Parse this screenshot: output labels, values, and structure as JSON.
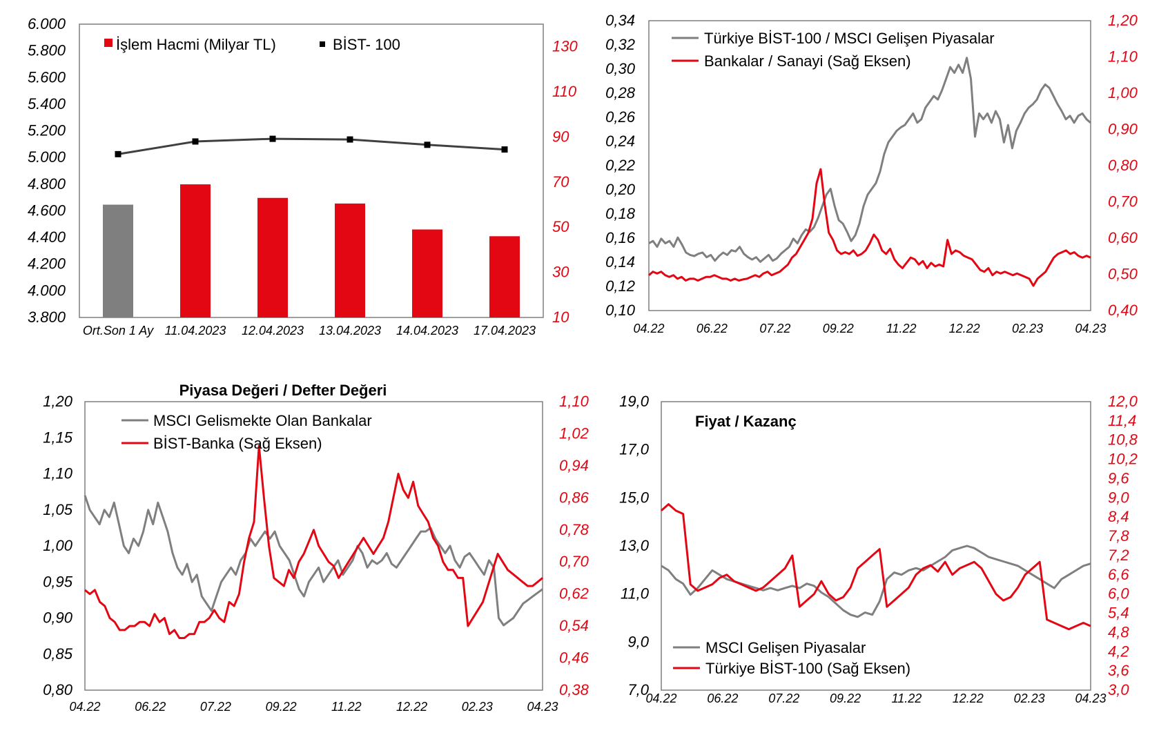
{
  "colors": {
    "red": "#e30613",
    "gray": "#7f7f7f",
    "black": "#000000",
    "dark": "#404040"
  },
  "chart_data": [
    {
      "id": "c1",
      "type": "bar",
      "title": "",
      "categories": [
        "Ort.Son 1 Ay",
        "11.04.2023",
        "12.04.2023",
        "13.04.2023",
        "14.04.2023",
        "17.04.2023"
      ],
      "series": [
        {
          "name": "İşlem Hacmi (Milyar TL)",
          "axis": "right",
          "values": [
            60,
            69,
            63,
            60.5,
            49,
            46
          ],
          "first_bar_color": "#7f7f7f"
        },
        {
          "name": "BİST- 100",
          "axis": "left",
          "type": "line",
          "values": [
            5025,
            5120,
            5140,
            5135,
            5095,
            5060
          ]
        }
      ],
      "ylim": [
        3800,
        6000
      ],
      "y2lim": [
        10,
        140
      ],
      "yticks": [
        "6.000",
        "5.800",
        "5.600",
        "5.400",
        "5.200",
        "5.000",
        "4.800",
        "4.600",
        "4.400",
        "4.200",
        "4.000",
        "3.800"
      ],
      "y2ticks": [
        "130",
        "110",
        "90",
        "70",
        "50",
        "30",
        "10"
      ],
      "legend": "top-left"
    },
    {
      "id": "c2",
      "type": "line",
      "title": "",
      "x_labels": [
        "04.22",
        "06.22",
        "07.22",
        "09.22",
        "11.22",
        "12.22",
        "02.23",
        "04.23"
      ],
      "series": [
        {
          "name": "Türkiye BİST-100 / MSCI Gelişen Piyasalar",
          "axis": "left",
          "values": [
            0.158,
            0.16,
            0.155,
            0.162,
            0.158,
            0.16,
            0.155,
            0.163,
            0.157,
            0.15,
            0.148,
            0.147,
            0.149,
            0.15,
            0.146,
            0.148,
            0.143,
            0.147,
            0.15,
            0.148,
            0.152,
            0.151,
            0.155,
            0.149,
            0.146,
            0.144,
            0.146,
            0.142,
            0.145,
            0.148,
            0.143,
            0.145,
            0.149,
            0.152,
            0.155,
            0.162,
            0.158,
            0.165,
            0.17,
            0.168,
            0.172,
            0.18,
            0.19,
            0.2,
            0.205,
            0.19,
            0.178,
            0.175,
            0.168,
            0.16,
            0.165,
            0.175,
            0.19,
            0.2,
            0.205,
            0.21,
            0.22,
            0.235,
            0.245,
            0.25,
            0.255,
            0.258,
            0.26,
            0.265,
            0.27,
            0.262,
            0.265,
            0.275,
            0.28,
            0.285,
            0.282,
            0.29,
            0.3,
            0.31,
            0.305,
            0.312,
            0.305,
            0.318,
            0.3,
            0.25,
            0.27,
            0.265,
            0.27,
            0.262,
            0.272,
            0.265,
            0.245,
            0.26,
            0.24,
            0.255,
            0.262,
            0.27,
            0.275,
            0.278,
            0.282,
            0.29,
            0.295,
            0.292,
            0.285,
            0.278,
            0.272,
            0.265,
            0.268,
            0.262,
            0.268,
            0.27,
            0.265,
            0.262
          ]
        },
        {
          "name": "Bankalar / Sanayi (Sağ Eksen)",
          "axis": "right",
          "values": [
            0.5,
            0.51,
            0.505,
            0.51,
            0.5,
            0.495,
            0.5,
            0.49,
            0.495,
            0.485,
            0.49,
            0.49,
            0.485,
            0.49,
            0.495,
            0.495,
            0.5,
            0.495,
            0.49,
            0.49,
            0.485,
            0.49,
            0.485,
            0.488,
            0.49,
            0.495,
            0.5,
            0.495,
            0.505,
            0.51,
            0.5,
            0.505,
            0.51,
            0.52,
            0.53,
            0.55,
            0.56,
            0.58,
            0.6,
            0.62,
            0.66,
            0.76,
            0.8,
            0.7,
            0.62,
            0.6,
            0.57,
            0.56,
            0.565,
            0.56,
            0.57,
            0.555,
            0.56,
            0.57,
            0.59,
            0.615,
            0.6,
            0.57,
            0.56,
            0.575,
            0.545,
            0.53,
            0.52,
            0.535,
            0.55,
            0.545,
            0.53,
            0.54,
            0.52,
            0.535,
            0.525,
            0.53,
            0.525,
            0.6,
            0.56,
            0.57,
            0.565,
            0.555,
            0.55,
            0.545,
            0.53,
            0.515,
            0.51,
            0.52,
            0.5,
            0.51,
            0.505,
            0.51,
            0.505,
            0.5,
            0.505,
            0.5,
            0.495,
            0.49,
            0.47,
            0.49,
            0.5,
            0.51,
            0.53,
            0.55,
            0.56,
            0.565,
            0.57,
            0.56,
            0.565,
            0.555,
            0.55,
            0.555,
            0.55
          ]
        }
      ],
      "ylim": [
        0.1,
        0.35
      ],
      "y2lim": [
        0.4,
        1.22
      ],
      "yticks": [
        "0,34",
        "0,32",
        "0,30",
        "0,28",
        "0,26",
        "0,24",
        "0,22",
        "0,20",
        "0,18",
        "0,16",
        "0,14",
        "0,12",
        "0,10"
      ],
      "y2ticks": [
        "1,20",
        "1,10",
        "1,00",
        "0,90",
        "0,80",
        "0,70",
        "0,60",
        "0,50",
        "0,40"
      ],
      "legend": "top-left"
    },
    {
      "id": "c3",
      "type": "line",
      "title": "Piyasa Değeri / Defter Değeri",
      "x_labels": [
        "04.22",
        "06.22",
        "07.22",
        "09.22",
        "11.22",
        "12.22",
        "02.23",
        "04.23"
      ],
      "series": [
        {
          "name": "MSCI Gelismekte Olan Bankalar",
          "axis": "left",
          "values": [
            1.07,
            1.05,
            1.04,
            1.03,
            1.05,
            1.04,
            1.06,
            1.03,
            1.0,
            0.99,
            1.01,
            1.0,
            1.02,
            1.05,
            1.03,
            1.06,
            1.04,
            1.02,
            0.99,
            0.97,
            0.96,
            0.975,
            0.95,
            0.96,
            0.93,
            0.92,
            0.91,
            0.93,
            0.95,
            0.96,
            0.97,
            0.96,
            0.98,
            0.99,
            1.01,
            1.0,
            1.01,
            1.02,
            1.01,
            1.02,
            1.0,
            0.99,
            0.98,
            0.96,
            0.94,
            0.93,
            0.95,
            0.96,
            0.97,
            0.95,
            0.96,
            0.97,
            0.98,
            0.96,
            0.97,
            0.98,
            1.0,
            0.99,
            0.97,
            0.98,
            0.975,
            0.98,
            0.99,
            0.975,
            0.97,
            0.98,
            0.99,
            1.0,
            1.01,
            1.02,
            1.02,
            1.025,
            1.01,
            1.0,
            0.99,
            1.0,
            0.98,
            0.97,
            0.985,
            0.99,
            0.98,
            0.97,
            0.96,
            0.98,
            0.97,
            0.9,
            0.89,
            0.895,
            0.9,
            0.91,
            0.92,
            0.925,
            0.93,
            0.935,
            0.94
          ]
        },
        {
          "name": "BİST-Banka (Sağ Eksen)",
          "axis": "right",
          "values": [
            0.63,
            0.62,
            0.63,
            0.6,
            0.59,
            0.56,
            0.55,
            0.53,
            0.53,
            0.54,
            0.54,
            0.55,
            0.55,
            0.54,
            0.57,
            0.55,
            0.56,
            0.52,
            0.53,
            0.51,
            0.51,
            0.52,
            0.52,
            0.55,
            0.55,
            0.56,
            0.58,
            0.56,
            0.55,
            0.6,
            0.59,
            0.62,
            0.7,
            0.76,
            0.8,
            0.99,
            0.86,
            0.74,
            0.66,
            0.65,
            0.64,
            0.68,
            0.66,
            0.7,
            0.72,
            0.75,
            0.78,
            0.74,
            0.72,
            0.7,
            0.69,
            0.66,
            0.68,
            0.7,
            0.72,
            0.74,
            0.76,
            0.74,
            0.72,
            0.74,
            0.76,
            0.8,
            0.86,
            0.92,
            0.88,
            0.86,
            0.9,
            0.84,
            0.82,
            0.8,
            0.76,
            0.74,
            0.7,
            0.68,
            0.68,
            0.66,
            0.66,
            0.54,
            0.56,
            0.58,
            0.6,
            0.64,
            0.68,
            0.72,
            0.7,
            0.68,
            0.67,
            0.66,
            0.65,
            0.64,
            0.64,
            0.65,
            0.66
          ]
        }
      ],
      "ylim": [
        0.8,
        1.2
      ],
      "y2lim": [
        0.38,
        1.1
      ],
      "yticks": [
        "1,20",
        "1,15",
        "1,10",
        "1,05",
        "1,00",
        "0,95",
        "0,90",
        "0,85",
        "0,80"
      ],
      "y2ticks": [
        "1,10",
        "1,02",
        "0,94",
        "0,86",
        "0,78",
        "0,70",
        "0,62",
        "0,54",
        "0,46",
        "0,38"
      ],
      "legend": "top-left"
    },
    {
      "id": "c4",
      "type": "line",
      "title": "Fiyat / Kazanç",
      "x_labels": [
        "04.22",
        "06.22",
        "07.22",
        "09.22",
        "11.22",
        "12.22",
        "02.23",
        "04.23"
      ],
      "series": [
        {
          "name": "MSCI Gelişen Piyasalar",
          "axis": "left",
          "values": [
            12.6,
            12.4,
            12.0,
            11.8,
            11.3,
            11.6,
            12.0,
            12.4,
            12.2,
            12.0,
            11.9,
            11.8,
            11.7,
            11.6,
            11.5,
            11.6,
            11.5,
            11.6,
            11.7,
            11.6,
            11.8,
            11.7,
            11.4,
            11.2,
            10.9,
            10.6,
            10.4,
            10.3,
            10.5,
            10.4,
            11.0,
            12.0,
            12.3,
            12.2,
            12.4,
            12.5,
            12.4,
            12.6,
            12.8,
            13.0,
            13.3,
            13.4,
            13.5,
            13.4,
            13.2,
            13.0,
            12.9,
            12.8,
            12.7,
            12.6,
            12.4,
            12.2,
            12.0,
            11.8,
            11.6,
            12.0,
            12.2,
            12.4,
            12.6,
            12.7
          ]
        },
        {
          "name": "Türkiye BİST-100 (Sağ Eksen)",
          "axis": "right",
          "values": [
            8.6,
            8.8,
            8.6,
            8.5,
            6.3,
            6.1,
            6.2,
            6.3,
            6.5,
            6.6,
            6.4,
            6.3,
            6.2,
            6.1,
            6.2,
            6.4,
            6.6,
            6.8,
            7.2,
            5.6,
            5.8,
            6.0,
            6.4,
            6.0,
            5.8,
            5.9,
            6.2,
            6.8,
            7.0,
            7.2,
            7.4,
            5.6,
            5.8,
            6.0,
            6.2,
            6.6,
            6.8,
            6.9,
            6.7,
            7.0,
            6.6,
            6.8,
            6.9,
            7.0,
            6.8,
            6.4,
            6.0,
            5.8,
            5.9,
            6.2,
            6.6,
            6.8,
            7.0,
            5.2,
            5.1,
            5.0,
            4.9,
            5.0,
            5.1,
            5.0
          ]
        }
      ],
      "ylim": [
        7.0,
        20.0
      ],
      "y2lim": [
        3.0,
        12.0
      ],
      "yticks": [
        "19,0",
        "17,0",
        "15,0",
        "13,0",
        "11,0",
        "9,0",
        "7,0"
      ],
      "y2ticks": [
        "12,0",
        "11,4",
        "10,8",
        "10,2",
        "9,6",
        "9,0",
        "8,4",
        "7,8",
        "7,2",
        "6,6",
        "6,0",
        "5,4",
        "4,8",
        "4,2",
        "3,6",
        "3,0"
      ],
      "legend": "bottom-left"
    }
  ]
}
